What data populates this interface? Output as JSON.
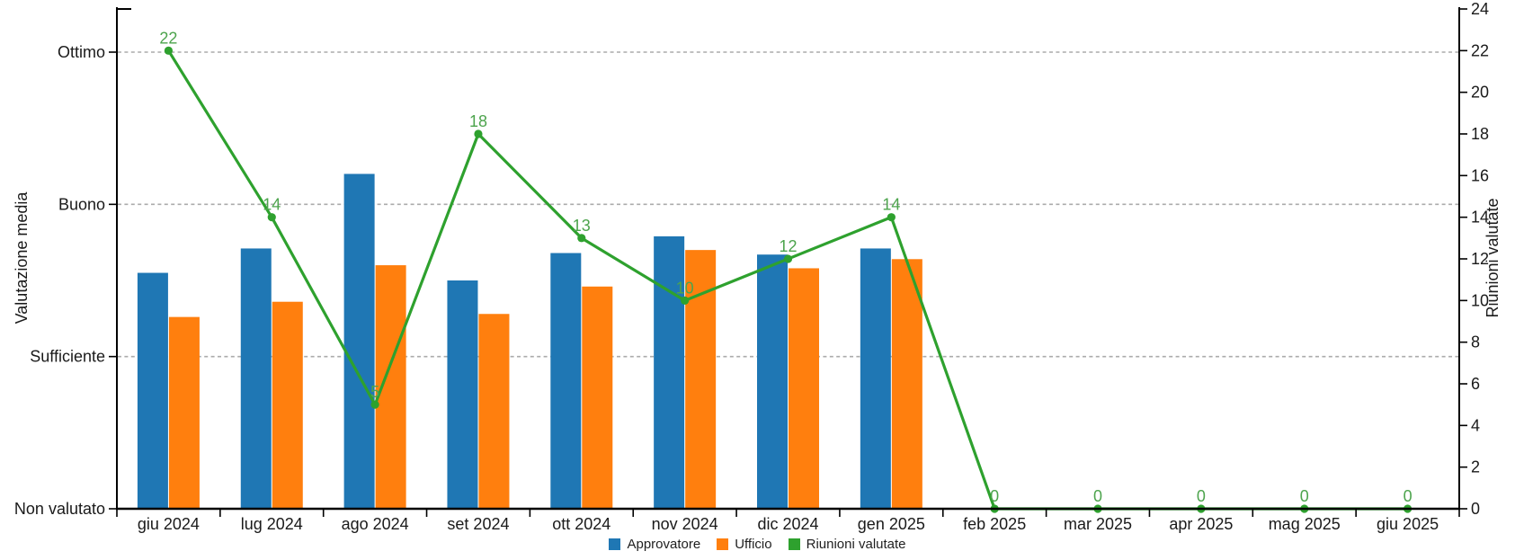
{
  "chart_data": {
    "type": "bar+line",
    "title": "",
    "categories": [
      "giu 2024",
      "lug 2024",
      "ago 2024",
      "set 2024",
      "ott 2024",
      "nov 2024",
      "dic 2024",
      "gen 2025",
      "feb 2025",
      "mar 2025",
      "apr 2025",
      "mag 2025",
      "giu 2025"
    ],
    "series": [
      {
        "name": "Approvatore",
        "type": "bar",
        "axis": "left",
        "color": "#1F77B4",
        "values": [
          1.55,
          1.71,
          2.2,
          1.5,
          1.68,
          1.79,
          1.67,
          1.71,
          null,
          null,
          null,
          null,
          null
        ]
      },
      {
        "name": "Ufficio",
        "type": "bar",
        "axis": "left",
        "color": "#FF7F0E",
        "values": [
          1.26,
          1.36,
          1.6,
          1.28,
          1.46,
          1.7,
          1.58,
          1.64,
          null,
          null,
          null,
          null,
          null
        ]
      },
      {
        "name": "Riunioni valutate",
        "type": "line",
        "axis": "right",
        "color": "#2EA12E",
        "label_color": "#4DA44D",
        "show_point_labels": true,
        "values": [
          22,
          14,
          5,
          18,
          13,
          10,
          12,
          14,
          0,
          0,
          0,
          0,
          0
        ]
      }
    ],
    "left_axis": {
      "title": "Valutazione media",
      "min": 0,
      "max": 3.3,
      "ticks": [
        {
          "value": 0,
          "label": "Non valutato"
        },
        {
          "value": 1,
          "label": "Sufficiente"
        },
        {
          "value": 2,
          "label": "Buono"
        },
        {
          "value": 3,
          "label": "Ottimo"
        }
      ],
      "gridline_values": [
        1,
        2,
        3
      ]
    },
    "right_axis": {
      "title": "Riunioni valutate",
      "min": 0,
      "max": 24,
      "tick_step": 2,
      "tick_labels": [
        "0",
        "2",
        "4",
        "6",
        "8",
        "10",
        "12",
        "14",
        "16",
        "18",
        "20",
        "22",
        "24"
      ]
    },
    "legend": {
      "items": [
        {
          "label": "Approvatore",
          "color": "#1F77B4"
        },
        {
          "label": "Ufficio",
          "color": "#FF7F0E"
        },
        {
          "label": "Riunioni valutate",
          "color": "#2EA12E"
        }
      ]
    },
    "layout_hints": {
      "grid": "dashed-horizontal",
      "legend_position": "bottom-center"
    },
    "colors": {
      "axis": "#000000",
      "grid": "#ABABAB",
      "tick_label": "#1a1a1a"
    }
  }
}
